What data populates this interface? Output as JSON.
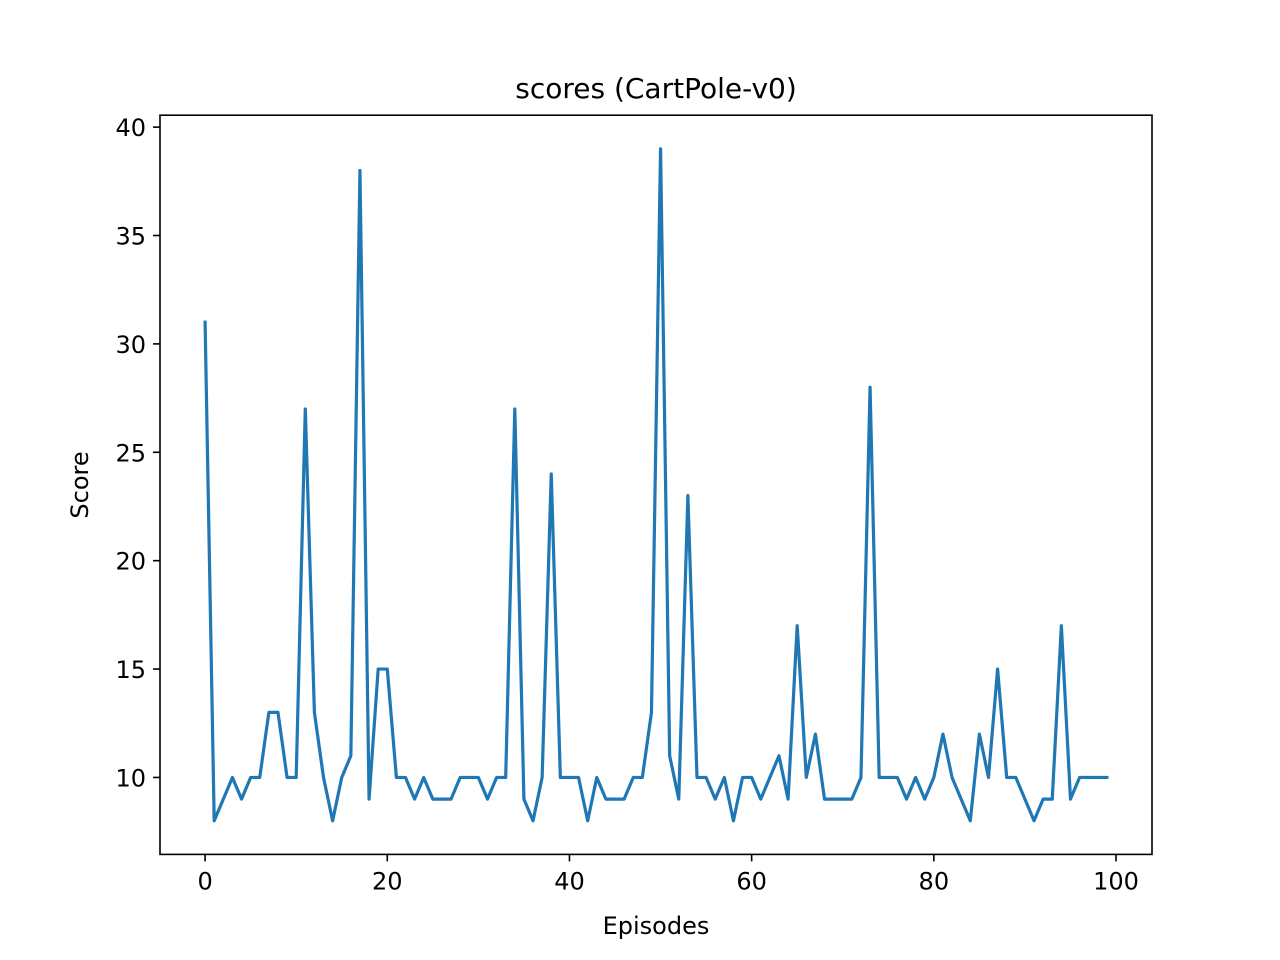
{
  "chart_data": {
    "type": "line",
    "title": "scores (CartPole-v0)",
    "xlabel": "Episodes",
    "ylabel": "Score",
    "xlim": [
      -4.95,
      103.95
    ],
    "ylim": [
      6.45,
      40.55
    ],
    "xticks": [
      0,
      20,
      40,
      60,
      80,
      100
    ],
    "yticks": [
      10,
      15,
      20,
      25,
      30,
      35,
      40
    ],
    "grid": false,
    "series": [
      {
        "color": "#1f77b4",
        "x": [
          0,
          1,
          2,
          3,
          4,
          5,
          6,
          7,
          8,
          9,
          10,
          11,
          12,
          13,
          14,
          15,
          16,
          17,
          18,
          19,
          20,
          21,
          22,
          23,
          24,
          25,
          26,
          27,
          28,
          29,
          30,
          31,
          32,
          33,
          34,
          35,
          36,
          37,
          38,
          39,
          40,
          41,
          42,
          43,
          44,
          45,
          46,
          47,
          48,
          49,
          50,
          51,
          52,
          53,
          54,
          55,
          56,
          57,
          58,
          59,
          60,
          61,
          62,
          63,
          64,
          65,
          66,
          67,
          68,
          69,
          70,
          71,
          72,
          73,
          74,
          75,
          76,
          77,
          78,
          79,
          80,
          81,
          82,
          83,
          84,
          85,
          86,
          87,
          88,
          89,
          90,
          91,
          92,
          93,
          94,
          95,
          96,
          97,
          98,
          99
        ],
        "y": [
          31,
          8,
          9,
          10,
          9,
          10,
          10,
          13,
          13,
          10,
          10,
          27,
          13,
          10,
          8,
          10,
          11,
          38,
          9,
          15,
          15,
          10,
          10,
          9,
          10,
          9,
          9,
          9,
          10,
          10,
          10,
          9,
          10,
          10,
          27,
          9,
          8,
          10,
          24,
          10,
          10,
          10,
          8,
          10,
          9,
          9,
          9,
          10,
          10,
          13,
          39,
          11,
          9,
          23,
          10,
          10,
          9,
          10,
          8,
          10,
          10,
          9,
          10,
          11,
          9,
          17,
          10,
          12,
          9,
          9,
          9,
          9,
          10,
          28,
          10,
          10,
          10,
          9,
          10,
          9,
          10,
          12,
          10,
          9,
          8,
          12,
          10,
          15,
          10,
          10,
          9,
          8,
          9,
          9,
          17,
          9,
          10,
          10,
          10,
          10
        ]
      }
    ]
  }
}
